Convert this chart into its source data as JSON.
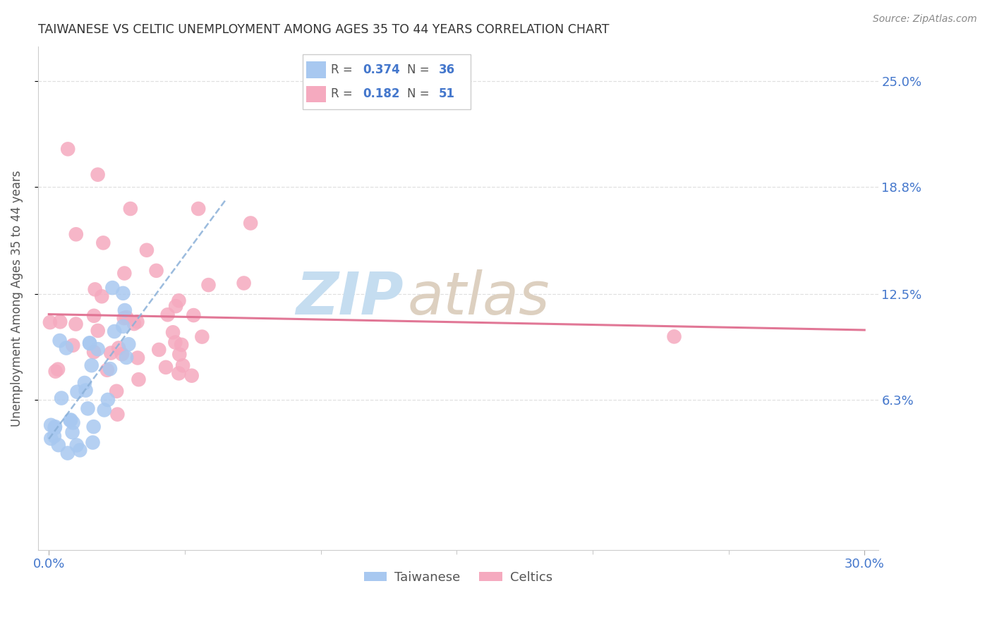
{
  "title": "TAIWANESE VS CELTIC UNEMPLOYMENT AMONG AGES 35 TO 44 YEARS CORRELATION CHART",
  "source": "Source: ZipAtlas.com",
  "ylabel": "Unemployment Among Ages 35 to 44 years",
  "ytick_vals": [
    0.063,
    0.125,
    0.188,
    0.25
  ],
  "ytick_labels": [
    "6.3%",
    "12.5%",
    "18.8%",
    "25.0%"
  ],
  "xtick_vals": [
    0.0,
    0.3
  ],
  "xtick_labels": [
    "0.0%",
    "30.0%"
  ],
  "xlim": [
    -0.004,
    0.305
  ],
  "ylim": [
    -0.025,
    0.27
  ],
  "taiwanese_color": "#a8c8f0",
  "taiwanese_edge_color": "#88aadd",
  "celtics_color": "#f5aabf",
  "celtics_edge_color": "#e080a0",
  "taiwanese_trendline_color": "#8ab0d8",
  "celtics_trendline_color": "#e07090",
  "watermark_zip_color": "#c8dff0",
  "watermark_atlas_color": "#d8c8b8",
  "grid_color": "#e0e0e0",
  "title_color": "#333333",
  "label_color": "#4477cc",
  "source_color": "#888888",
  "ylabel_color": "#555555",
  "legend_r_color": "#555555",
  "legend_val_color": "#4477cc",
  "tw_N": 36,
  "cel_N": 51,
  "tw_R": "0.374",
  "cel_R": "0.182"
}
